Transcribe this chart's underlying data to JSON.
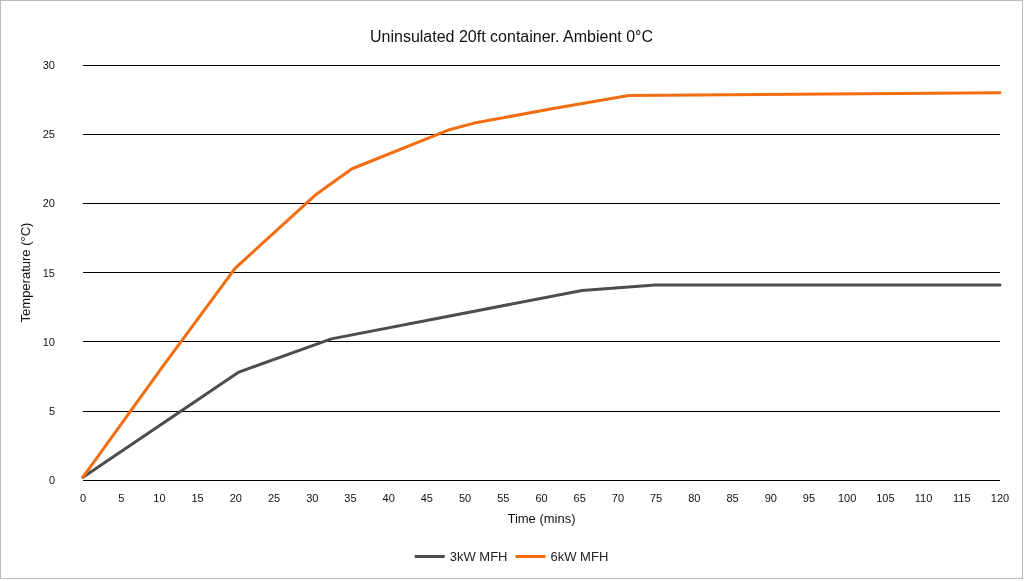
{
  "chart_data": {
    "type": "line",
    "title": "Uninsulated 20ft container. Ambient 0°C",
    "xlabel": "Time (mins)",
    "ylabel": "Temperature (°C)",
    "xlim": [
      0,
      120
    ],
    "xticks": [
      0,
      5,
      10,
      15,
      20,
      25,
      30,
      35,
      40,
      45,
      50,
      55,
      60,
      65,
      70,
      75,
      80,
      85,
      90,
      95,
      100,
      105,
      110,
      115,
      120
    ],
    "ylim": [
      0,
      30
    ],
    "yticks": [
      0,
      5,
      10,
      15,
      20,
      25,
      30
    ],
    "grid": "y",
    "legend": "bottom",
    "marker": "none",
    "line_style": "solid",
    "series": [
      {
        "name": "3kW MFH",
        "color": "#4d4d4d",
        "x": [
          0,
          20.4,
          32.5,
          65.3,
          74.9,
          120
        ],
        "values": [
          0.2,
          7.8,
          10.2,
          13.7,
          14.1,
          14.1
        ]
      },
      {
        "name": "6kW MFH",
        "color": "#f26d0f",
        "x": [
          0,
          10.3,
          19.9,
          30.4,
          35.2,
          47.8,
          51.2,
          61,
          71.4,
          120
        ],
        "values": [
          0.2,
          8.1,
          15.3,
          20.6,
          22.5,
          25.3,
          25.8,
          26.8,
          27.8,
          28
        ]
      }
    ]
  }
}
